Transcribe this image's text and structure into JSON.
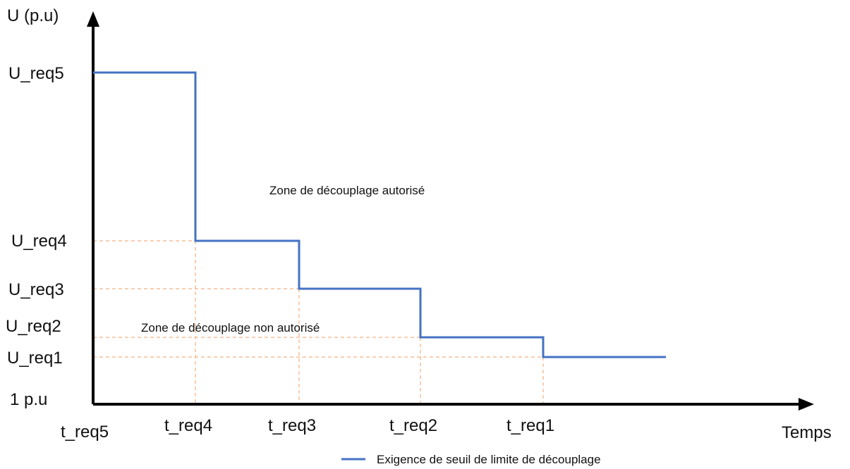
{
  "chart_data": {
    "type": "line",
    "title": "",
    "xlabel": "Temps",
    "ylabel": "U (p.u)",
    "y_origin_label": "1 p.u",
    "x_tick_labels": [
      "t_req5",
      "t_req4",
      "t_req3",
      "t_req2",
      "t_req1"
    ],
    "y_tick_labels": [
      "U_req5",
      "U_req4",
      "U_req3",
      "U_req2",
      "U_req1"
    ],
    "series": [
      {
        "name": "Exigence de seuil de limite de découplage",
        "color": "#4472C4",
        "step_points": [
          [
            "t_req5",
            "U_req5"
          ],
          [
            "t_req4",
            "U_req5"
          ],
          [
            "t_req4",
            "U_req4"
          ],
          [
            "t_req3",
            "U_req4"
          ],
          [
            "t_req3",
            "U_req3"
          ],
          [
            "t_req2",
            "U_req3"
          ],
          [
            "t_req2",
            "U_req2"
          ],
          [
            "t_req1",
            "U_req2"
          ],
          [
            "t_req1",
            "U_req1"
          ]
        ]
      }
    ],
    "annotations": [
      "Zone de découplage autorisé",
      "Zone de découplage non autorisé"
    ],
    "guide_line_color": "#F4B183",
    "legend_position": "bottom-center"
  }
}
